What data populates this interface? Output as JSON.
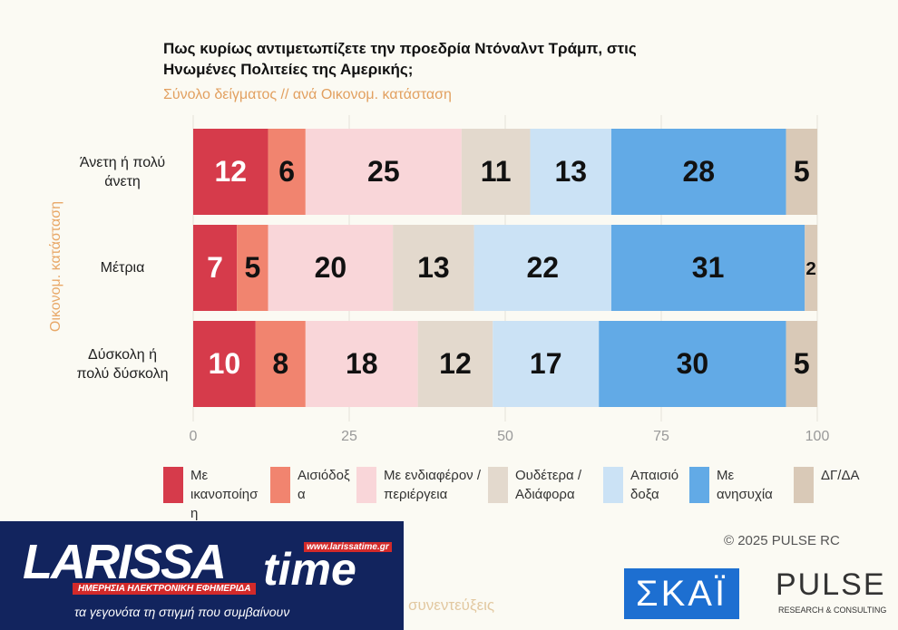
{
  "chart_data": {
    "type": "stacked_barh",
    "title": "Πως κυρίως αντιμετωπίζετε την προεδρία Ντόναλντ Τράμπ, στις Ηνωμένες Πολιτείες της Αμερικής;",
    "subtitle": "Σύνολο δείγματος // ανά Οικονομ. κατάσταση",
    "ylabel": "Οικονομ. κατάσταση",
    "categories": [
      "Άνετη ή πολύ άνετη",
      "Μέτρια",
      "Δύσκολη ή πολύ δύσκολη"
    ],
    "series": [
      {
        "name": "Με ικανοποίηση",
        "color": "#d63b4b",
        "label_color": "#ffffff",
        "values": [
          12,
          7,
          10
        ]
      },
      {
        "name": "Αισιόδοξα",
        "color": "#f1846f",
        "label_color": "#111111",
        "values": [
          6,
          5,
          8
        ]
      },
      {
        "name": "Με ενδιαφέρον / περιέργεια",
        "color": "#f9d6d9",
        "label_color": "#111111",
        "values": [
          25,
          20,
          18
        ]
      },
      {
        "name": "Ουδέτερα / Αδιάφορα",
        "color": "#e3d9cd",
        "label_color": "#111111",
        "values": [
          11,
          13,
          12
        ]
      },
      {
        "name": "Απαισιόδοξα",
        "color": "#cbe2f5",
        "label_color": "#111111",
        "values": [
          13,
          22,
          17
        ]
      },
      {
        "name": "Με ανησυχία",
        "color": "#62aae6",
        "label_color": "#111111",
        "values": [
          28,
          31,
          30
        ]
      },
      {
        "name": "ΔΓ/ΔΑ",
        "color": "#d9c9b7",
        "label_color": "#111111",
        "values": [
          5,
          2,
          5
        ]
      }
    ],
    "xlim": [
      0,
      100
    ],
    "xticks": [
      0,
      25,
      50,
      75,
      100
    ],
    "grid": true,
    "credit": "© 2025 PULSE RC"
  },
  "watermark": {
    "title": "PULSE",
    "subtitle": "RESEARCH & CONSULTING"
  },
  "logos": {
    "larissa_main": "LARISSA",
    "larissa_time": "time",
    "larissa_url": "www.larissatime.gr",
    "larissa_tag": "ΗΜΕΡΗΣΙΑ ΗΛΕΚΤΡΟΝΙΚΗ ΕΦΗΜΕΡΙΔΑ",
    "larissa_slogan": "τα γεγονότα τη στιγμή που συμβαίνουν",
    "skai": "ΣΚΑΪ",
    "pulse": "PULSE",
    "pulse_sub": "RESEARCH & CONSULTING",
    "partial": "συνεντεύξεις"
  }
}
